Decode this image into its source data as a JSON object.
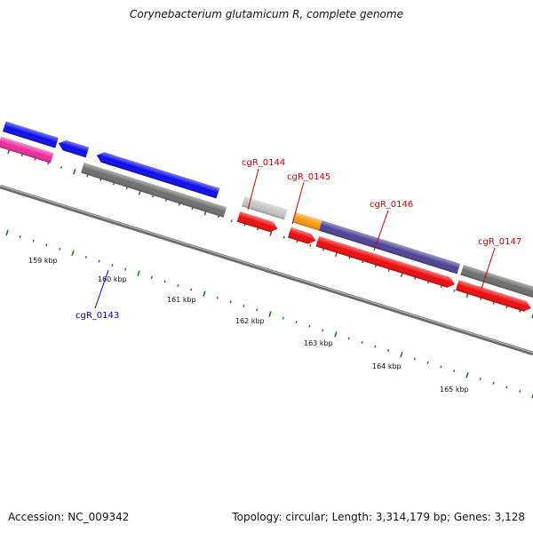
{
  "title": "Corynebacterium glutamicum R, complete genome",
  "footer": {
    "accession": "Accession: NC_009342",
    "summary": "Topology: circular; Length: 3,314,179 bp; Genes: 3,128"
  },
  "scale_labels": [
    "159 kbp",
    "160 kbp",
    "161 kbp",
    "162 kbp",
    "163 kbp",
    "164 kbp",
    "165 kbp"
  ],
  "genes": [
    {
      "name": "cgR_0143",
      "color": "#0000cc"
    },
    {
      "name": "cgR_0144",
      "color": "#cc0000"
    },
    {
      "name": "cgR_0145",
      "color": "#cc0000"
    },
    {
      "name": "cgR_0146",
      "color": "#cc0000"
    },
    {
      "name": "cgR_0147",
      "color": "#cc0000"
    }
  ],
  "colors": {
    "tick": "#1e7a1e",
    "axis": "#808080",
    "forward_blue": "#0a0aee",
    "gray_gene": "#6e6e6e",
    "light_gray_gene": "#c4c4c4",
    "red_gene": "#ee0a0a",
    "orange_gene": "#ff9a10",
    "purple_gene": "#4b4296",
    "pink_gene": "#ee2aa0"
  }
}
